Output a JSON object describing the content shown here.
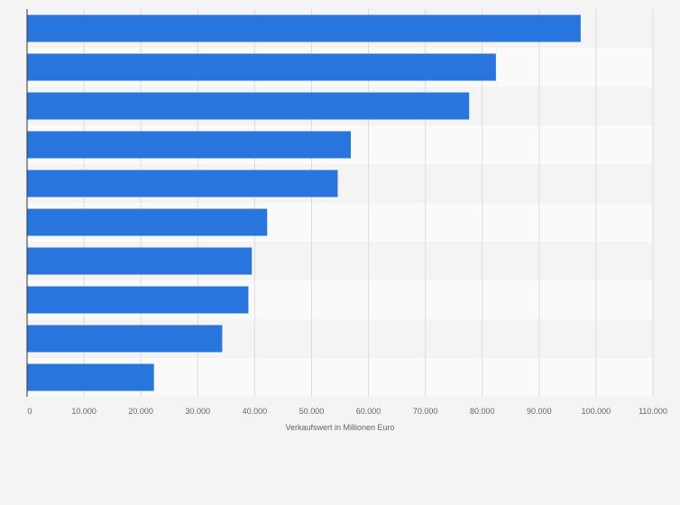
{
  "chart_data": {
    "type": "bar",
    "orientation": "horizontal",
    "title": "",
    "xlabel": "Verkaufswert in Millionen Euro",
    "ylabel": "",
    "categories": [
      "",
      "",
      "",
      "",
      "",
      "",
      "",
      "",
      "",
      ""
    ],
    "values": [
      97300,
      82400,
      77700,
      56900,
      54600,
      42200,
      39500,
      38900,
      34300,
      22300
    ],
    "xlim": [
      0,
      110000
    ],
    "x_ticks": [
      0,
      10000,
      20000,
      30000,
      40000,
      50000,
      60000,
      70000,
      80000,
      90000,
      100000,
      110000
    ],
    "x_tick_labels": [
      "0",
      "10.000",
      "20.000",
      "30.000",
      "40.000",
      "50.000",
      "60.000",
      "70.000",
      "80.000",
      "90.000",
      "100.000",
      "110.000"
    ],
    "grid": true,
    "legend": "none",
    "colors": {
      "bar": "#2876dd",
      "band_light": "#f4f4f4",
      "band_white": "#fafafa",
      "grid": "#dcdcdc",
      "axis": "#333333",
      "text": "#666666",
      "background": "#f4f4f4"
    }
  }
}
